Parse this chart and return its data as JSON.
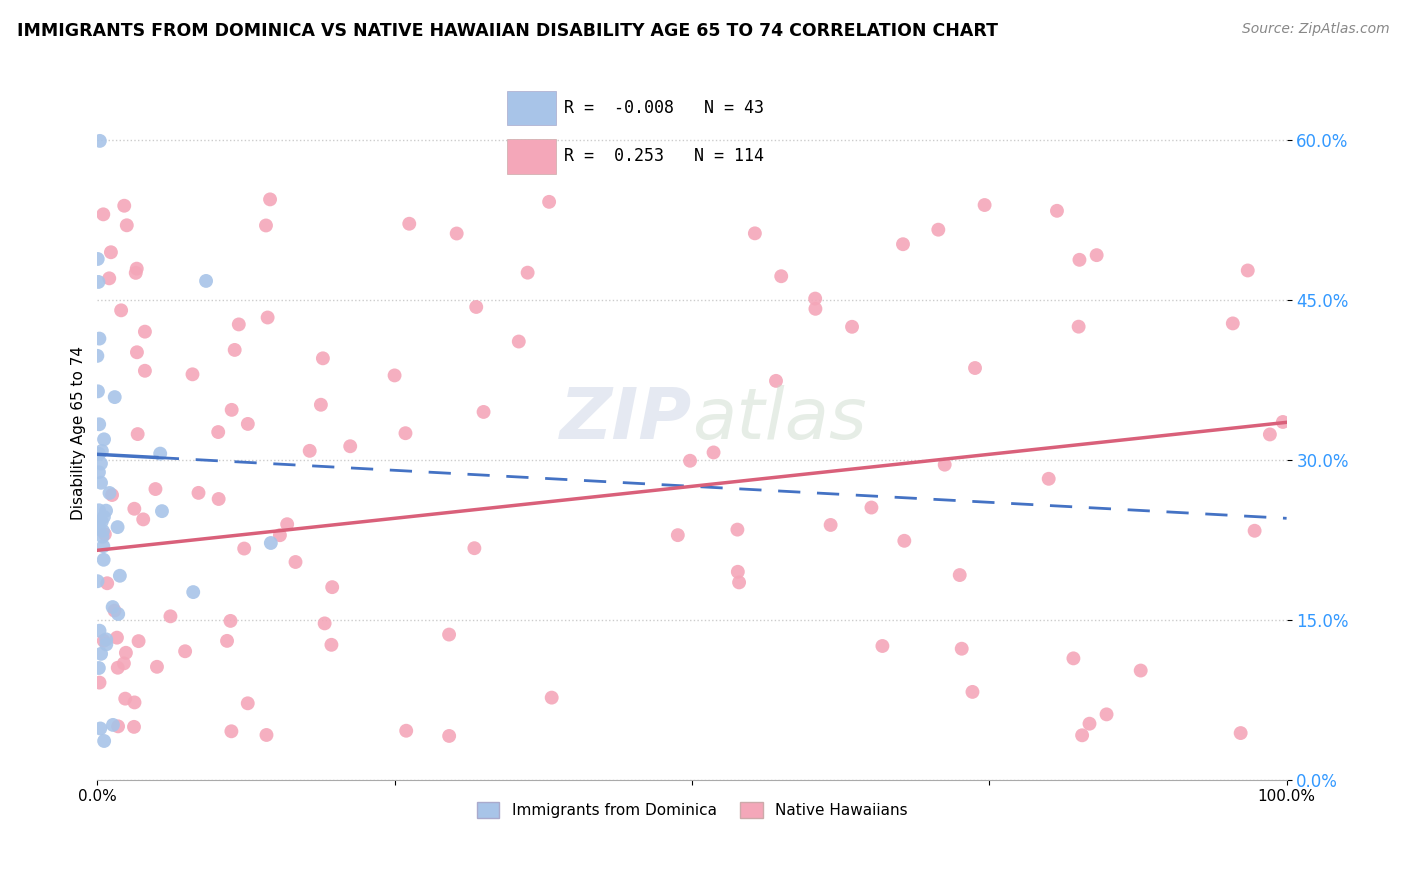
{
  "title": "IMMIGRANTS FROM DOMINICA VS NATIVE HAWAIIAN DISABILITY AGE 65 TO 74 CORRELATION CHART",
  "source_text": "Source: ZipAtlas.com",
  "ylabel": "Disability Age 65 to 74",
  "xlim": [
    0.0,
    1.0
  ],
  "ylim": [
    0.0,
    0.65
  ],
  "yticks": [
    0.0,
    0.15,
    0.3,
    0.45,
    0.6
  ],
  "ytick_labels": [
    "0.0%",
    "15.0%",
    "30.0%",
    "45.0%",
    "60.0%"
  ],
  "xtick_labels": [
    "0.0%",
    "100.0%"
  ],
  "blue_R": -0.008,
  "blue_N": 43,
  "pink_R": 0.253,
  "pink_N": 114,
  "blue_color": "#a8c4e8",
  "pink_color": "#f4a7b9",
  "blue_line_color": "#4472c4",
  "pink_line_color": "#d9607a",
  "legend_label_blue": "Immigrants from Dominica",
  "legend_label_pink": "Native Hawaiians",
  "blue_line_y0": 0.305,
  "blue_line_y1": 0.245,
  "pink_line_y0": 0.215,
  "pink_line_y1": 0.335
}
